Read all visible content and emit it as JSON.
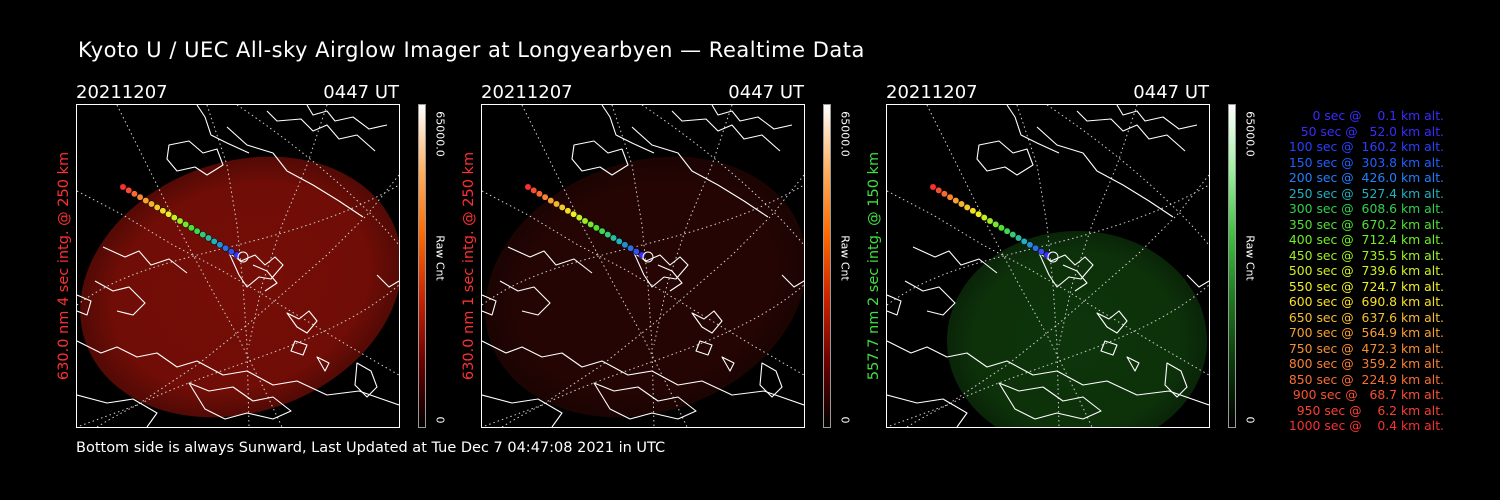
{
  "page": {
    "title": "Kyoto U / UEC All-sky Airglow Imager at Longyearbyen — Realtime Data",
    "footer": "Bottom side is always Sunward, Last Updated at Tue Dec  7 04:47:08 2021 in UTC"
  },
  "panels": [
    {
      "date": "20211207",
      "time": "0447 UT",
      "side_label": "630.0 nm 4 sec intg. @ 250 km",
      "label_color": "#ff3030",
      "cbar_max": "65000.0",
      "cbar_min": "0",
      "cbar_unit": "Raw Cnt",
      "cbar_colors": [
        "#000000",
        "#6a0000",
        "#cc2200",
        "#ff6a00",
        "#ffb060",
        "#ffffff"
      ],
      "image_color": "#8a1008",
      "image_opacity": 0.85
    },
    {
      "date": "20211207",
      "time": "0447 UT",
      "side_label": "630.0 nm 1 sec intg. @ 250 km",
      "label_color": "#ff3030",
      "cbar_max": "65000.0",
      "cbar_min": "0",
      "cbar_unit": "Raw Cnt",
      "cbar_colors": [
        "#000000",
        "#6a0000",
        "#cc2200",
        "#ff6a00",
        "#ffb060",
        "#ffffff"
      ],
      "image_color": "#2a0604",
      "image_opacity": 0.9
    },
    {
      "date": "20211207",
      "time": "0447 UT",
      "side_label": "557.7 nm 2 sec intg. @ 150 km",
      "label_color": "#40e040",
      "cbar_max": "65000.0",
      "cbar_min": "0",
      "cbar_unit": "Raw Cnt",
      "cbar_colors": [
        "#000000",
        "#0a3a0a",
        "#1e7a1e",
        "#40c040",
        "#a0f0a0",
        "#ffffff"
      ],
      "image_color": "#0f3a0c",
      "image_opacity": 0.9
    }
  ],
  "legend": [
    {
      "text": "   0 sec @    0.1 km alt.",
      "color": "#3a2cff"
    },
    {
      "text": "  50 sec @   52.0 km alt.",
      "color": "#3a2cff"
    },
    {
      "text": " 100 sec @  160.2 km alt.",
      "color": "#2a40ff"
    },
    {
      "text": " 150 sec @  303.8 km alt.",
      "color": "#2060ff"
    },
    {
      "text": " 200 sec @  426.0 km alt.",
      "color": "#2080ff"
    },
    {
      "text": " 250 sec @  527.4 km alt.",
      "color": "#20b0c0"
    },
    {
      "text": " 300 sec @  608.6 km alt.",
      "color": "#30d050"
    },
    {
      "text": " 350 sec @  670.2 km alt.",
      "color": "#50e030"
    },
    {
      "text": " 400 sec @  712.4 km alt.",
      "color": "#70f020"
    },
    {
      "text": " 450 sec @  735.5 km alt.",
      "color": "#a0f020"
    },
    {
      "text": " 500 sec @  739.6 km alt.",
      "color": "#d0f020"
    },
    {
      "text": " 550 sec @  724.7 km alt.",
      "color": "#f0f020"
    },
    {
      "text": " 600 sec @  690.8 km alt.",
      "color": "#f8e020"
    },
    {
      "text": " 650 sec @  637.6 km alt.",
      "color": "#f8c030"
    },
    {
      "text": " 700 sec @  564.9 km alt.",
      "color": "#f8a030"
    },
    {
      "text": " 750 sec @  472.3 km alt.",
      "color": "#f89030"
    },
    {
      "text": " 800 sec @  359.2 km alt.",
      "color": "#f88030"
    },
    {
      "text": " 850 sec @  224.9 km alt.",
      "color": "#f87030"
    },
    {
      "text": " 900 sec @   68.7 km alt.",
      "color": "#f85030"
    },
    {
      "text": " 950 sec @    6.2 km alt.",
      "color": "#f84030"
    },
    {
      "text": "1000 sec @    0.4 km alt.",
      "color": "#f83030"
    }
  ]
}
